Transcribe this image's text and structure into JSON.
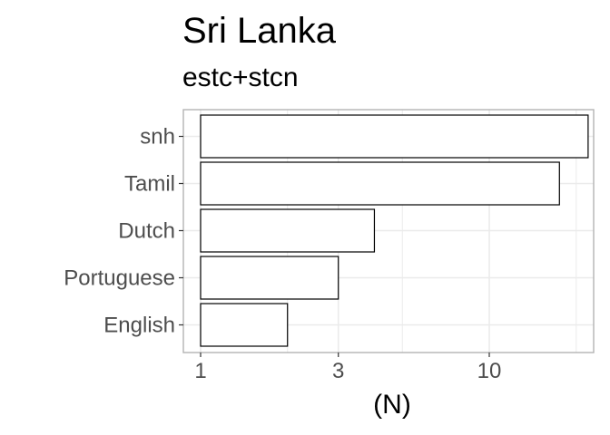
{
  "chart_data": {
    "type": "bar",
    "orientation": "horizontal",
    "title": "Sri Lanka",
    "subtitle": "estc+stcn",
    "xlabel": "(N)",
    "ylabel": "",
    "x_scale": "log10",
    "xlim": [
      0.8,
      24
    ],
    "x_ticks": [
      {
        "value": 1,
        "label": "1"
      },
      {
        "value": 3,
        "label": "3"
      },
      {
        "value": 10,
        "label": "10"
      }
    ],
    "x_minor_grid": [
      2,
      5,
      20
    ],
    "categories": [
      "snh",
      "Tamil",
      "Dutch",
      "Portuguese",
      "English"
    ],
    "values": [
      22,
      17.5,
      4,
      3,
      2
    ],
    "bar_fill": "#ffffff",
    "bar_stroke": "#000000",
    "grid": true,
    "grid_color": "#ebebeb",
    "panel_border_color": "#b3b3b3",
    "legend": "none"
  }
}
